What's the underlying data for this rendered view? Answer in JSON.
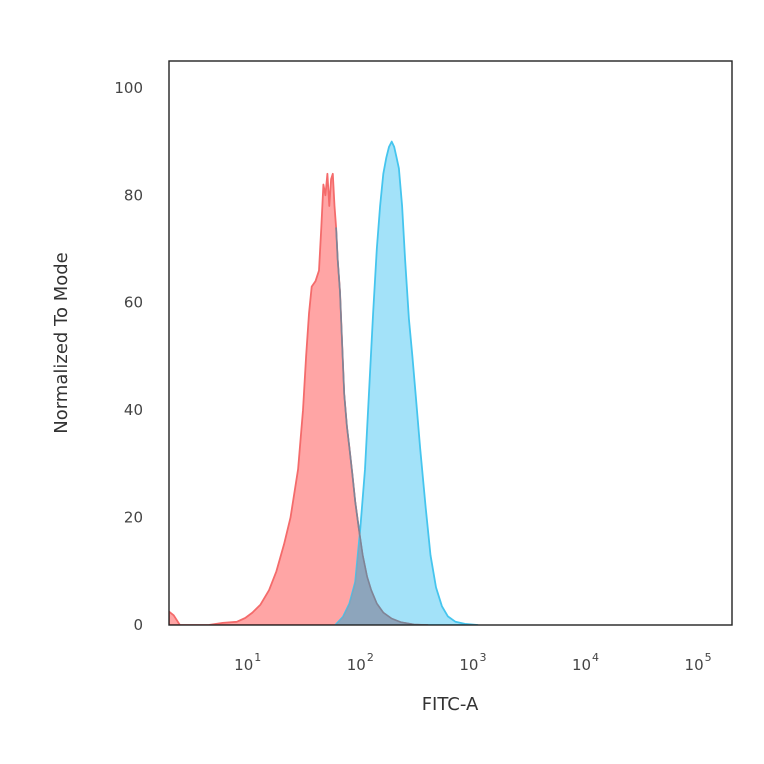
{
  "chart_data": {
    "type": "area",
    "xlabel": "FITC-A",
    "ylabel": "Normalized To Mode",
    "x_scale": "log",
    "xlim": [
      2,
      200000
    ],
    "ylim": [
      0,
      105
    ],
    "x_ticks": [
      {
        "value": 10,
        "base": "10",
        "exp": "1"
      },
      {
        "value": 100,
        "base": "10",
        "exp": "2"
      },
      {
        "value": 1000,
        "base": "10",
        "exp": "3"
      },
      {
        "value": 10000,
        "base": "10",
        "exp": "4"
      },
      {
        "value": 100000,
        "base": "10",
        "exp": "5"
      }
    ],
    "y_ticks": [
      {
        "value": 0,
        "label": "0"
      },
      {
        "value": 20,
        "label": "20"
      },
      {
        "value": 40,
        "label": "40"
      },
      {
        "value": 60,
        "label": "60"
      },
      {
        "value": 80,
        "label": "80"
      },
      {
        "value": 100,
        "label": "100"
      }
    ],
    "grid": false,
    "series": [
      {
        "color": "#f46b6b",
        "fill": "#ffa5a5",
        "x": [
          2.0,
          2.2,
          2.5,
          4.5,
          6,
          8,
          9.5,
          11,
          13,
          15.5,
          18,
          21,
          24,
          28,
          31,
          33,
          35,
          37,
          40,
          43,
          45,
          47,
          49,
          51,
          53,
          55,
          57,
          59,
          61,
          63,
          66,
          69,
          72,
          76,
          80,
          85,
          90,
          97,
          105,
          115,
          125,
          140,
          160,
          190,
          230,
          300,
          400
        ],
        "y": [
          2.5,
          1.8,
          0,
          0,
          0.4,
          0.6,
          1.3,
          2.3,
          3.8,
          6.5,
          10,
          15,
          20,
          29,
          40,
          50,
          58,
          63,
          64,
          66,
          74,
          82,
          80,
          84,
          78,
          83,
          84,
          78,
          74,
          68,
          62,
          52,
          43,
          37,
          33,
          28,
          23,
          18,
          13,
          9,
          6.5,
          4,
          2.3,
          1.2,
          0.5,
          0.1,
          0
        ]
      },
      {
        "color": "#45c5ee",
        "fill": "#8fdcf8",
        "x": [
          60,
          70,
          80,
          90,
          100,
          110,
          120,
          130,
          140,
          150,
          160,
          170,
          180,
          190,
          200,
          210,
          220,
          235,
          250,
          270,
          290,
          310,
          340,
          380,
          420,
          470,
          530,
          600,
          700,
          850,
          1100
        ],
        "y": [
          0,
          1.5,
          4,
          8,
          18,
          29,
          44,
          58,
          70,
          78,
          84,
          87,
          89,
          90,
          89,
          87,
          85,
          78,
          68,
          57,
          50,
          43,
          33,
          22,
          13,
          7,
          3.5,
          1.6,
          0.6,
          0.2,
          0
        ]
      }
    ]
  }
}
